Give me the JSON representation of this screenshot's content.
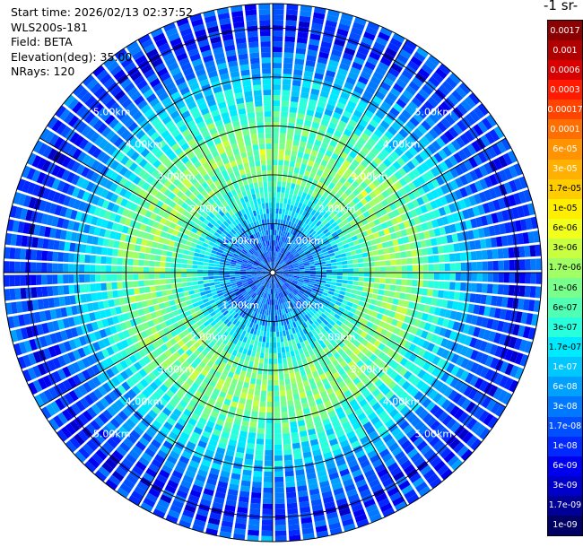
{
  "header": {
    "start_time": "Start time: 2026/02/13 02:37:52",
    "instrument": "WLS200s-181",
    "field": "Field: BETA",
    "elevation": "Elevation(deg): 35.00",
    "nrays": "NRays: 120"
  },
  "colorbar": {
    "title": "-1 sr-",
    "labels": [
      "0.0017",
      "0.001",
      "0.0006",
      "0.0003",
      "0.00017",
      "0.0001",
      "6e-05",
      "3e-05",
      "1.7e-05",
      "1e-05",
      "6e-06",
      "3e-06",
      "1.7e-06",
      "1e-06",
      "6e-07",
      "3e-07",
      "1.7e-07",
      "1e-07",
      "6e-08",
      "3e-08",
      "1.7e-08",
      "1e-08",
      "6e-09",
      "3e-09",
      "1.7e-09",
      "1e-09"
    ],
    "colors": [
      "#8b0000",
      "#b00000",
      "#d80000",
      "#ff1a00",
      "#ff4400",
      "#ff6e00",
      "#ff9400",
      "#ffb000",
      "#ffcc00",
      "#ffee00",
      "#f2ff1a",
      "#c8ff40",
      "#a0ff64",
      "#78ff8c",
      "#50ffb4",
      "#28ffdc",
      "#00eaff",
      "#00c8ff",
      "#00a0ff",
      "#0078ff",
      "#0050ff",
      "#0028ff",
      "#0000f0",
      "#0000c8",
      "#000096",
      "#000064"
    ]
  },
  "chart_data": {
    "type": "heatmap",
    "projection": "polar (PPI scan)",
    "field": "BETA",
    "elevation_deg": 35.0,
    "n_rays": 120,
    "range_rings_km": [
      1,
      2,
      3,
      4,
      5
    ],
    "max_range_km": 5.5,
    "ring_labels": [
      "1.00km",
      "2.00km",
      "3.00km",
      "4.00km",
      "5.00km"
    ],
    "spokes_deg": [
      0,
      30,
      60,
      90,
      120,
      150,
      180,
      210,
      240,
      270,
      300,
      330
    ],
    "color_scale": "log",
    "color_range": [
      1e-09,
      0.0017
    ],
    "radial_profile": [
      {
        "range_km": 0.5,
        "value": 3e-08
      },
      {
        "range_km": 1.0,
        "value": 6e-08
      },
      {
        "range_km": 1.5,
        "value": 3e-07
      },
      {
        "range_km": 2.0,
        "value": 1e-06
      },
      {
        "range_km": 2.5,
        "value": 1.7e-06
      },
      {
        "range_km": 3.0,
        "value": 1e-06
      },
      {
        "range_km": 3.5,
        "value": 3e-07
      },
      {
        "range_km": 4.0,
        "value": 1e-07
      },
      {
        "range_km": 4.5,
        "value": 3e-08
      },
      {
        "range_km": 5.0,
        "value": 1e-08
      },
      {
        "range_km": 5.5,
        "value": 3e-08
      }
    ]
  }
}
